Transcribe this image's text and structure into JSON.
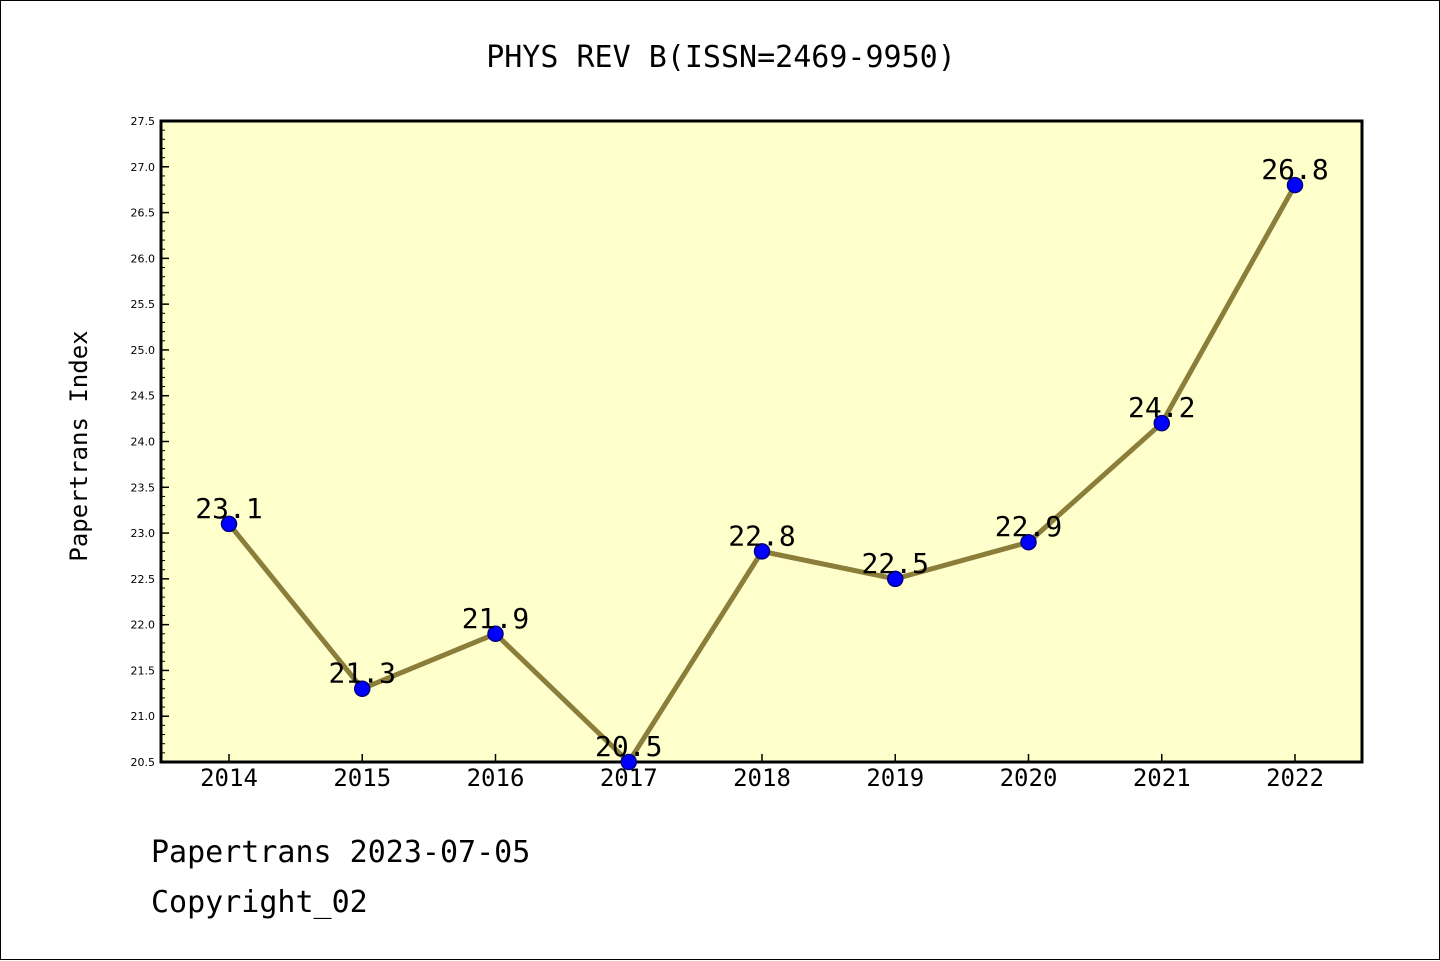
{
  "chart_data": {
    "type": "line",
    "title": "PHYS REV B(ISSN=2469-9950)",
    "xlabel": "",
    "ylabel": "Papertrans Index",
    "categories": [
      "2014",
      "2015",
      "2016",
      "2017",
      "2018",
      "2019",
      "2020",
      "2021",
      "2022"
    ],
    "values": [
      23.1,
      21.3,
      21.9,
      20.5,
      22.8,
      22.5,
      22.9,
      24.2,
      26.8
    ],
    "data_labels": [
      "23.1",
      "21.3",
      "21.9",
      "20.5",
      "22.8",
      "22.5",
      "22.9",
      "24.2",
      "26.8"
    ],
    "ylim": [
      20.5,
      27.5
    ],
    "yticks": [
      "20.5",
      "21.0",
      "21.5",
      "22.0",
      "22.5",
      "23.0",
      "23.5",
      "24.0",
      "24.5",
      "25.0",
      "25.5",
      "26.0",
      "26.5",
      "27.0",
      "27.5"
    ],
    "grid": false,
    "colors": {
      "plot_background": "#ffffcc",
      "line": "#8b7d3a",
      "marker_fill": "#0000ff",
      "marker_edge": "#000080"
    }
  },
  "footer": {
    "line1": "Papertrans 2023-07-05",
    "line2": "Copyright_02"
  }
}
